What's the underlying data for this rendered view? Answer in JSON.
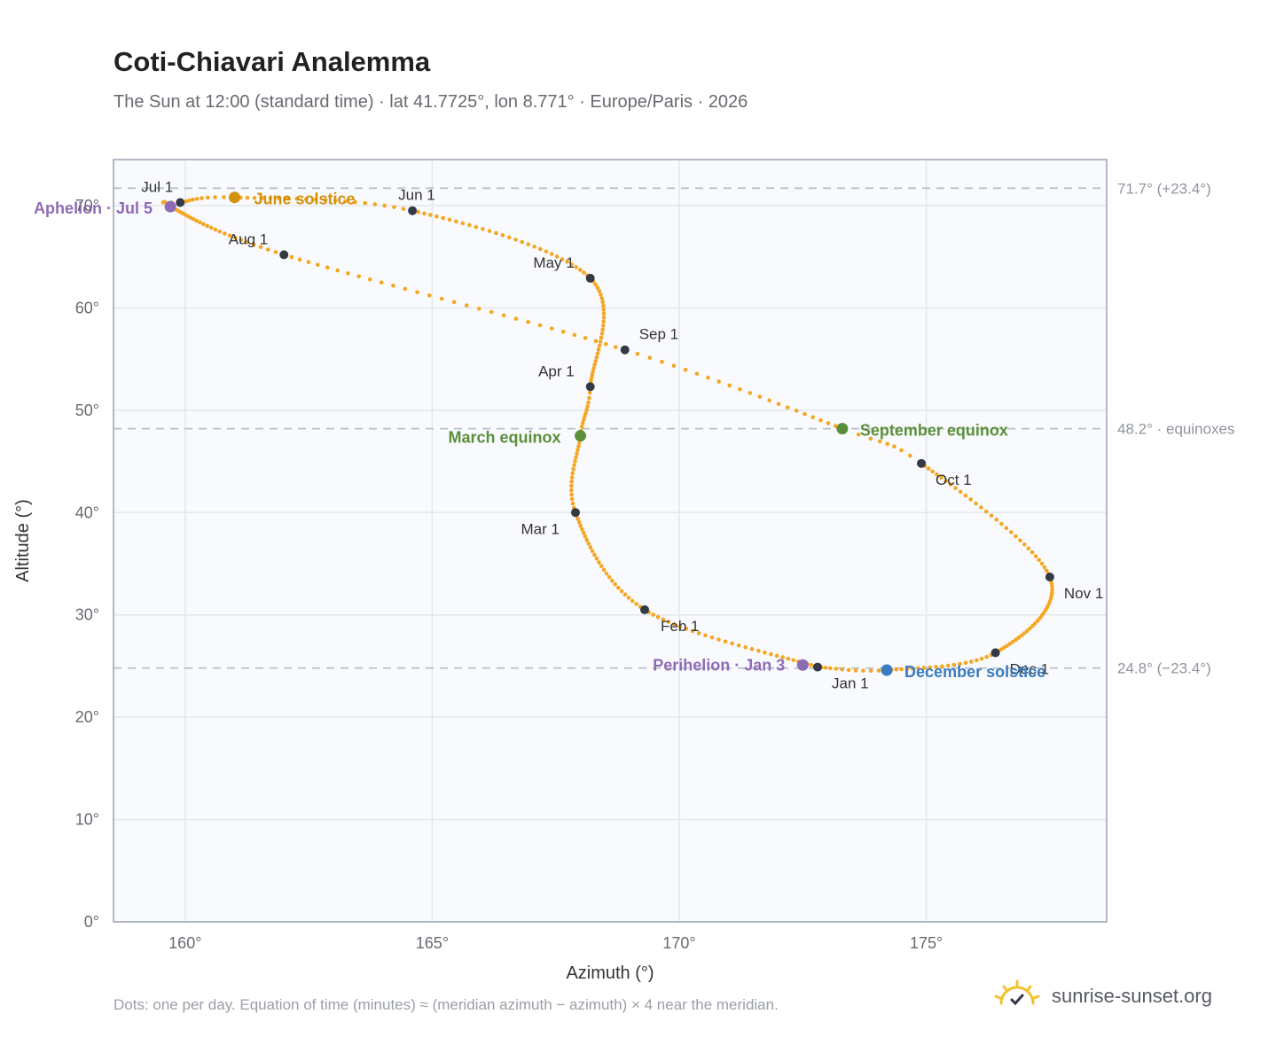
{
  "header": {
    "title": "Coti-Chiavari Analemma",
    "subtitle": "The Sun at 12:00 (standard time) · lat 41.7725°, lon 8.771° · Europe/Paris · 2026"
  },
  "footer": {
    "note": "Dots: one per day. Equation of time (minutes) ≈ (meridian azimuth − azimuth) × 4 near the meridian.",
    "brand": "sunrise-sunset.org"
  },
  "colors": {
    "curve": "#f5a623",
    "month_marker": "#333a45",
    "solstice_june": "#d4900a",
    "equinox": "#5a8f3a",
    "solstice_december": "#3a7cc0",
    "apsis": "#8e6bb5",
    "grid": "#e3e7ee",
    "plot_bg": "#f8fafd",
    "ref_line": "#b8c0cc"
  },
  "chart_data": {
    "type": "scatter",
    "title": "Coti-Chiavari Analemma",
    "subtitle": "The Sun at 12:00 (standard time) · lat 41.7725°, lon 8.771° · Europe/Paris · 2026",
    "xlabel": "Azimuth (°)",
    "ylabel": "Altitude (°)",
    "xlim": [
      158.55,
      178.65
    ],
    "ylim": [
      0,
      74.5
    ],
    "x_ticks": [
      {
        "value": 160,
        "label": "160°"
      },
      {
        "value": 165,
        "label": "165°"
      },
      {
        "value": 170,
        "label": "170°"
      },
      {
        "value": 175,
        "label": "175°"
      }
    ],
    "y_ticks": [
      {
        "value": 0,
        "label": "0°"
      },
      {
        "value": 10,
        "label": "10°"
      },
      {
        "value": 20,
        "label": "20°"
      },
      {
        "value": 30,
        "label": "30°"
      },
      {
        "value": 40,
        "label": "40°"
      },
      {
        "value": 50,
        "label": "50°"
      },
      {
        "value": 60,
        "label": "60°"
      },
      {
        "value": 70,
        "label": "70°"
      }
    ],
    "grid": true,
    "reference_lines": [
      {
        "value": 71.7,
        "label": "71.7° (+23.4°)"
      },
      {
        "value": 48.2,
        "label": "48.2° · equinoxes"
      },
      {
        "value": 24.8,
        "label": "24.8° (−23.4°)"
      }
    ],
    "path_knots": [
      {
        "doy": 1,
        "az": 172.8,
        "alt": 24.9
      },
      {
        "doy": 32,
        "az": 169.3,
        "alt": 30.5
      },
      {
        "doy": 60,
        "az": 167.9,
        "alt": 40.0
      },
      {
        "doy": 79,
        "az": 168.0,
        "alt": 47.5
      },
      {
        "doy": 91,
        "az": 168.2,
        "alt": 52.3
      },
      {
        "doy": 121,
        "az": 168.2,
        "alt": 62.9
      },
      {
        "doy": 152,
        "az": 164.6,
        "alt": 69.5
      },
      {
        "doy": 172,
        "az": 161.0,
        "alt": 70.8
      },
      {
        "doy": 182,
        "az": 159.9,
        "alt": 70.3
      },
      {
        "doy": 186,
        "az": 159.7,
        "alt": 69.9
      },
      {
        "doy": 213,
        "az": 162.0,
        "alt": 65.2
      },
      {
        "doy": 244,
        "az": 168.9,
        "alt": 55.9
      },
      {
        "doy": 266,
        "az": 173.3,
        "alt": 48.2
      },
      {
        "doy": 274,
        "az": 174.9,
        "alt": 44.8
      },
      {
        "doy": 305,
        "az": 177.5,
        "alt": 33.7
      },
      {
        "doy": 335,
        "az": 176.4,
        "alt": 26.3
      },
      {
        "doy": 355,
        "az": 174.2,
        "alt": 24.6
      },
      {
        "doy": 366,
        "az": 172.8,
        "alt": 24.9
      }
    ],
    "month_markers": [
      {
        "label": "Jan 1",
        "az": 172.8,
        "alt": 24.9
      },
      {
        "label": "Feb 1",
        "az": 169.3,
        "alt": 30.5
      },
      {
        "label": "Mar 1",
        "az": 167.9,
        "alt": 40.0
      },
      {
        "label": "Apr 1",
        "az": 168.2,
        "alt": 52.3
      },
      {
        "label": "May 1",
        "az": 168.2,
        "alt": 62.9
      },
      {
        "label": "Jun 1",
        "az": 164.6,
        "alt": 69.5
      },
      {
        "label": "Jul 1",
        "az": 159.9,
        "alt": 70.3
      },
      {
        "label": "Aug 1",
        "az": 162.0,
        "alt": 65.2
      },
      {
        "label": "Sep 1",
        "az": 168.9,
        "alt": 55.9
      },
      {
        "label": "Oct 1",
        "az": 174.9,
        "alt": 44.8
      },
      {
        "label": "Nov 1",
        "az": 177.5,
        "alt": 33.7
      },
      {
        "label": "Dec 1",
        "az": 176.4,
        "alt": 26.3
      }
    ],
    "events": [
      {
        "label": "June solstice",
        "az": 161.0,
        "alt": 70.8,
        "color": "#d4900a"
      },
      {
        "label": "March equinox",
        "az": 168.0,
        "alt": 47.5,
        "color": "#5a8f3a"
      },
      {
        "label": "September equinox",
        "az": 173.3,
        "alt": 48.2,
        "color": "#5a8f3a"
      },
      {
        "label": "December solstice",
        "az": 174.2,
        "alt": 24.6,
        "color": "#3a7cc0"
      },
      {
        "label": "Aphelion · Jul 5",
        "az": 159.7,
        "alt": 69.9,
        "color": "#8e6bb5"
      },
      {
        "label": "Perihelion · Jan 3",
        "az": 172.5,
        "alt": 25.1,
        "color": "#8e6bb5"
      }
    ]
  }
}
